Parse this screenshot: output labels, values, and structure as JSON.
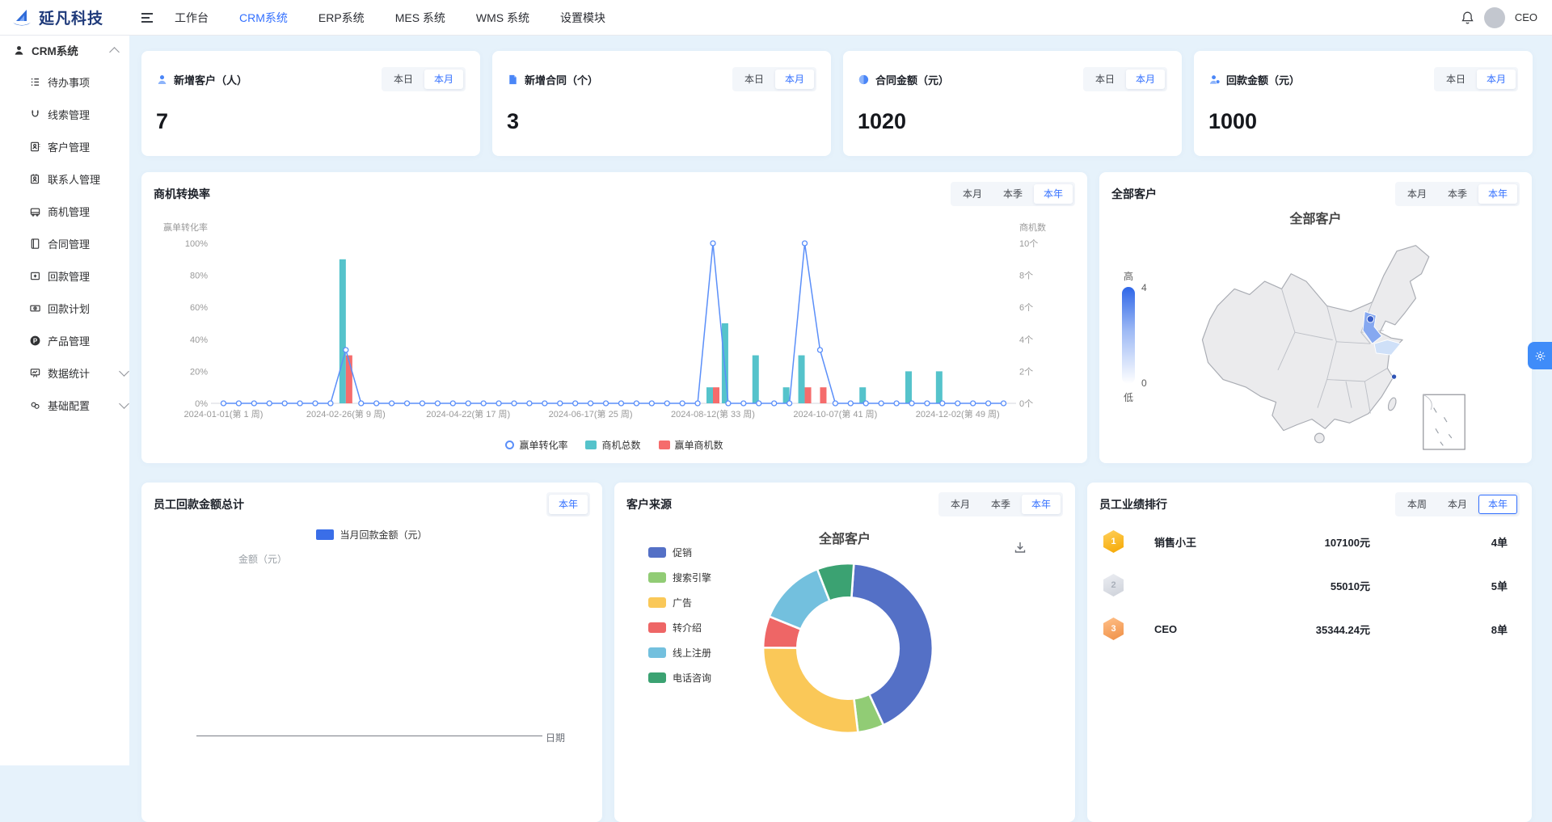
{
  "navbar": {
    "brand": "延凡科技",
    "tabs": [
      {
        "label": "工作台"
      },
      {
        "label": "CRM系统"
      },
      {
        "label": "ERP系统"
      },
      {
        "label": "MES 系统"
      },
      {
        "label": "WMS 系统"
      },
      {
        "label": "设置模块"
      }
    ],
    "user": {
      "name": "CEO"
    }
  },
  "sidebar": {
    "group": {
      "label": "CRM系统"
    },
    "items": [
      {
        "label": "待办事项"
      },
      {
        "label": "线索管理"
      },
      {
        "label": "客户管理"
      },
      {
        "label": "联系人管理"
      },
      {
        "label": "商机管理"
      },
      {
        "label": "合同管理"
      },
      {
        "label": "回款管理"
      },
      {
        "label": "回款计划"
      },
      {
        "label": "产品管理"
      },
      {
        "label": "数据统计"
      },
      {
        "label": "基础配置"
      }
    ]
  },
  "stat_cards": [
    {
      "title": "新增客户（人）",
      "value": "7",
      "ranges": [
        "本日",
        "本月"
      ],
      "active_range": "本月"
    },
    {
      "title": "新增合同（个）",
      "value": "3",
      "ranges": [
        "本日",
        "本月"
      ],
      "active_range": "本月"
    },
    {
      "title": "合同金额（元）",
      "value": "1020",
      "ranges": [
        "本日",
        "本月"
      ],
      "active_range": "本月"
    },
    {
      "title": "回款金额（元）",
      "value": "1000",
      "ranges": [
        "本日",
        "本月"
      ],
      "active_range": "本月"
    }
  ],
  "conversion_card": {
    "title": "商机转换率",
    "ranges": [
      "本月",
      "本季",
      "本年"
    ],
    "active_range": "本年"
  },
  "map_card": {
    "title": "全部客户",
    "chart_title": "全部客户",
    "ranges": [
      "本月",
      "本季",
      "本年"
    ],
    "active_range": "本年",
    "visual": {
      "high": "高",
      "max": "4",
      "min": "0",
      "low": "低"
    }
  },
  "payback_card": {
    "title": "员工回款金额总计",
    "ranges": [
      "本年"
    ],
    "active_range": "本年",
    "legend": "当月回款金额（元）",
    "y_name": "金额（元）",
    "x_name": "日期"
  },
  "sources_card": {
    "title": "客户来源",
    "ranges": [
      "本月",
      "本季",
      "本年"
    ],
    "active_range": "本年",
    "chart_title": "全部客户"
  },
  "ranking_card": {
    "title": "员工业绩排行",
    "ranges": [
      "本周",
      "本月",
      "本年"
    ],
    "active_range": "本年",
    "rows": [
      {
        "rank": "1",
        "name": "销售小王",
        "amount": "107100元",
        "orders": "4单"
      },
      {
        "rank": "2",
        "name": "",
        "amount": "55010元",
        "orders": "5单"
      },
      {
        "rank": "3",
        "name": "CEO",
        "amount": "35344.24元",
        "orders": "8单"
      }
    ]
  },
  "chart_data": [
    {
      "id": "opportunity-conversion",
      "type": "bar",
      "title": "商机转换率",
      "x_weeks": 52,
      "x_tick_weeks": [
        1,
        9,
        17,
        25,
        33,
        41,
        49
      ],
      "x_tick_labels": [
        "2024-01-01(第 1 周)",
        "2024-02-26(第 9 周)",
        "2024-04-22(第 17 周)",
        "2024-06-17(第 25 周)",
        "2024-08-12(第 33 周)",
        "2024-10-07(第 41 周)",
        "2024-12-02(第 49 周)"
      ],
      "y_left": {
        "name": "赢单转化率",
        "max": 100,
        "tick_step": 20,
        "ticks": [
          "0%",
          "20%",
          "40%",
          "60%",
          "80%",
          "100%"
        ]
      },
      "y_right": {
        "name": "商机数",
        "max": 10,
        "tick_step": 2,
        "ticks": [
          "0个",
          "2个",
          "4个",
          "6个",
          "8个",
          "10个"
        ]
      },
      "series": [
        {
          "name": "赢单转化率",
          "type": "line",
          "axis": "left",
          "color": "#5b8ff9",
          "points": {
            "9": 33.33,
            "33": 100,
            "39": 100,
            "40": 33.33
          }
        },
        {
          "name": "商机总数",
          "type": "bar",
          "axis": "right",
          "color": "#55c3cb",
          "points": {
            "9": 9,
            "33": 1,
            "34": 5,
            "36": 3,
            "38": 1,
            "39": 3,
            "43": 1,
            "46": 2,
            "48": 2
          }
        },
        {
          "name": "赢单商机数",
          "type": "bar",
          "axis": "right",
          "color": "#f56c6c",
          "points": {
            "9": 3,
            "33": 1,
            "39": 1,
            "40": 1
          }
        }
      ]
    },
    {
      "id": "customer-sources",
      "type": "pie",
      "title": "全部客户",
      "legend_position": "left",
      "items": [
        {
          "name": "促销",
          "value": 42,
          "color": "#5470c6"
        },
        {
          "name": "搜索引擎",
          "value": 5,
          "color": "#91cc75"
        },
        {
          "name": "广告",
          "value": 27,
          "color": "#fac858"
        },
        {
          "name": "转介绍",
          "value": 6,
          "color": "#ee6666"
        },
        {
          "name": "线上注册",
          "value": 13,
          "color": "#73c0de"
        },
        {
          "name": "电话咨询",
          "value": 7,
          "color": "#3ba272"
        }
      ]
    },
    {
      "id": "customer-map",
      "type": "heatmap",
      "title": "全部客户",
      "range": [
        0,
        4
      ],
      "regions": [
        {
          "name": "北京",
          "color": "#3a5fc8"
        },
        {
          "name": "河北",
          "color": "#86a8f0"
        },
        {
          "name": "山东",
          "color": "#cfe0f8"
        },
        {
          "name": "上海",
          "color": "#2f54b5"
        }
      ],
      "base_fill": "#ebebed"
    },
    {
      "id": "employee-payback",
      "type": "line",
      "title": "员工回款金额总计",
      "xlabel": "日期",
      "ylabel": "金额（元）",
      "series": [
        {
          "name": "当月回款金额（元）",
          "color": "#3a6ee8",
          "values": []
        }
      ]
    }
  ]
}
